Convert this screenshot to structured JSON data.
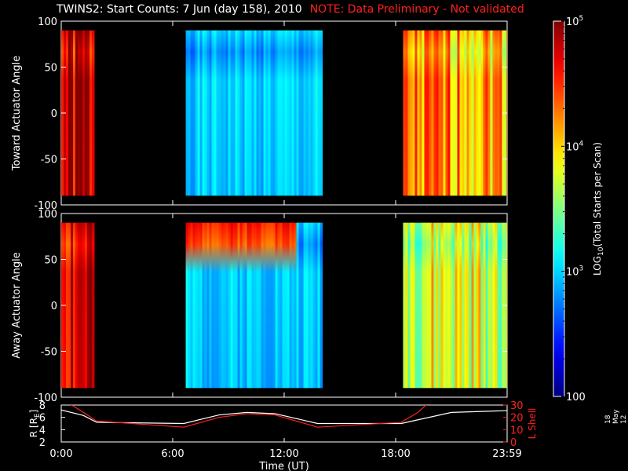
{
  "header": {
    "title": "TWINS2: Start Counts:  7 Jun (day 158), 2010",
    "note": "NOTE: Data Preliminary - Not validated"
  },
  "date_stamp": "18 May 12",
  "colors": {
    "note": "#ff2020",
    "white_line": "#ffffff",
    "red_line": "#ff2020"
  },
  "chart_data": [
    {
      "type": "heatmap",
      "ylabel": "Toward Actuator Angle",
      "ylim": [
        -100,
        100
      ],
      "yticks": [
        "100",
        "50",
        "0",
        "-50",
        "-100"
      ],
      "xlim": [
        0,
        24
      ],
      "data_intervals_hours": [
        [
          0,
          1.75
        ],
        [
          6.7,
          14.0
        ],
        [
          18.4,
          24.0
        ]
      ],
      "typical_log10_counts": [
        4.8,
        3.0,
        4.2
      ]
    },
    {
      "type": "heatmap",
      "ylabel": "Away Actuator Angle",
      "ylim": [
        -100,
        100
      ],
      "yticks": [
        "100",
        "50",
        "0",
        "-50",
        "-100"
      ],
      "xlim": [
        0,
        24
      ],
      "data_intervals_hours": [
        [
          0,
          1.75
        ],
        [
          6.7,
          14.0
        ],
        [
          18.4,
          24.0
        ]
      ],
      "typical_log10_counts": [
        4.8,
        3.0,
        3.8
      ]
    },
    {
      "type": "line",
      "ylabel_left": "R [R",
      "ylabel_left_sub": "E",
      "ylabel_left_end": "]",
      "ylabel_right": "L Shell",
      "left_yticks": [
        "8",
        "6",
        "4",
        "2"
      ],
      "right_yticks": [
        "30",
        "20",
        "10",
        "0"
      ],
      "left_ylim": [
        2,
        8
      ],
      "right_ylim": [
        0,
        30
      ],
      "xlim": [
        0,
        24
      ],
      "xticks": [
        "0:00",
        "6:00",
        "12:00",
        "18:00",
        "23:59"
      ],
      "xlabel": "Time (UT)",
      "series": [
        {
          "x": [
            0,
            1.2,
            1.9,
            6.6,
            8.5,
            10,
            11.5,
            13.8,
            18.3,
            21,
            24
          ],
          "values": [
            7.2,
            6.3,
            5.2,
            5.0,
            6.4,
            6.8,
            6.6,
            5.0,
            5.0,
            6.8,
            7.1
          ]
        },
        {
          "x": [
            0.45,
            1.2,
            1.9,
            6.6,
            8.5,
            10,
            11.5,
            13.8,
            18.3,
            19.2,
            19.7
          ],
          "values": [
            31,
            24,
            17,
            12,
            20,
            23,
            22,
            12,
            16,
            24,
            31
          ]
        }
      ]
    },
    {
      "type": "heatmap",
      "title": "LOG",
      "title_sub": "10",
      "title_end": "(Total Starts per Scan)",
      "ticks": [
        {
          "mantissa": "10",
          "exp": "5",
          "value": 5
        },
        {
          "mantissa": "10",
          "exp": "4",
          "value": 4
        },
        {
          "mantissa": "10",
          "exp": "3",
          "value": 3
        },
        {
          "mantissa": "100",
          "exp": "",
          "value": 2
        }
      ],
      "range": [
        2,
        5
      ]
    }
  ]
}
